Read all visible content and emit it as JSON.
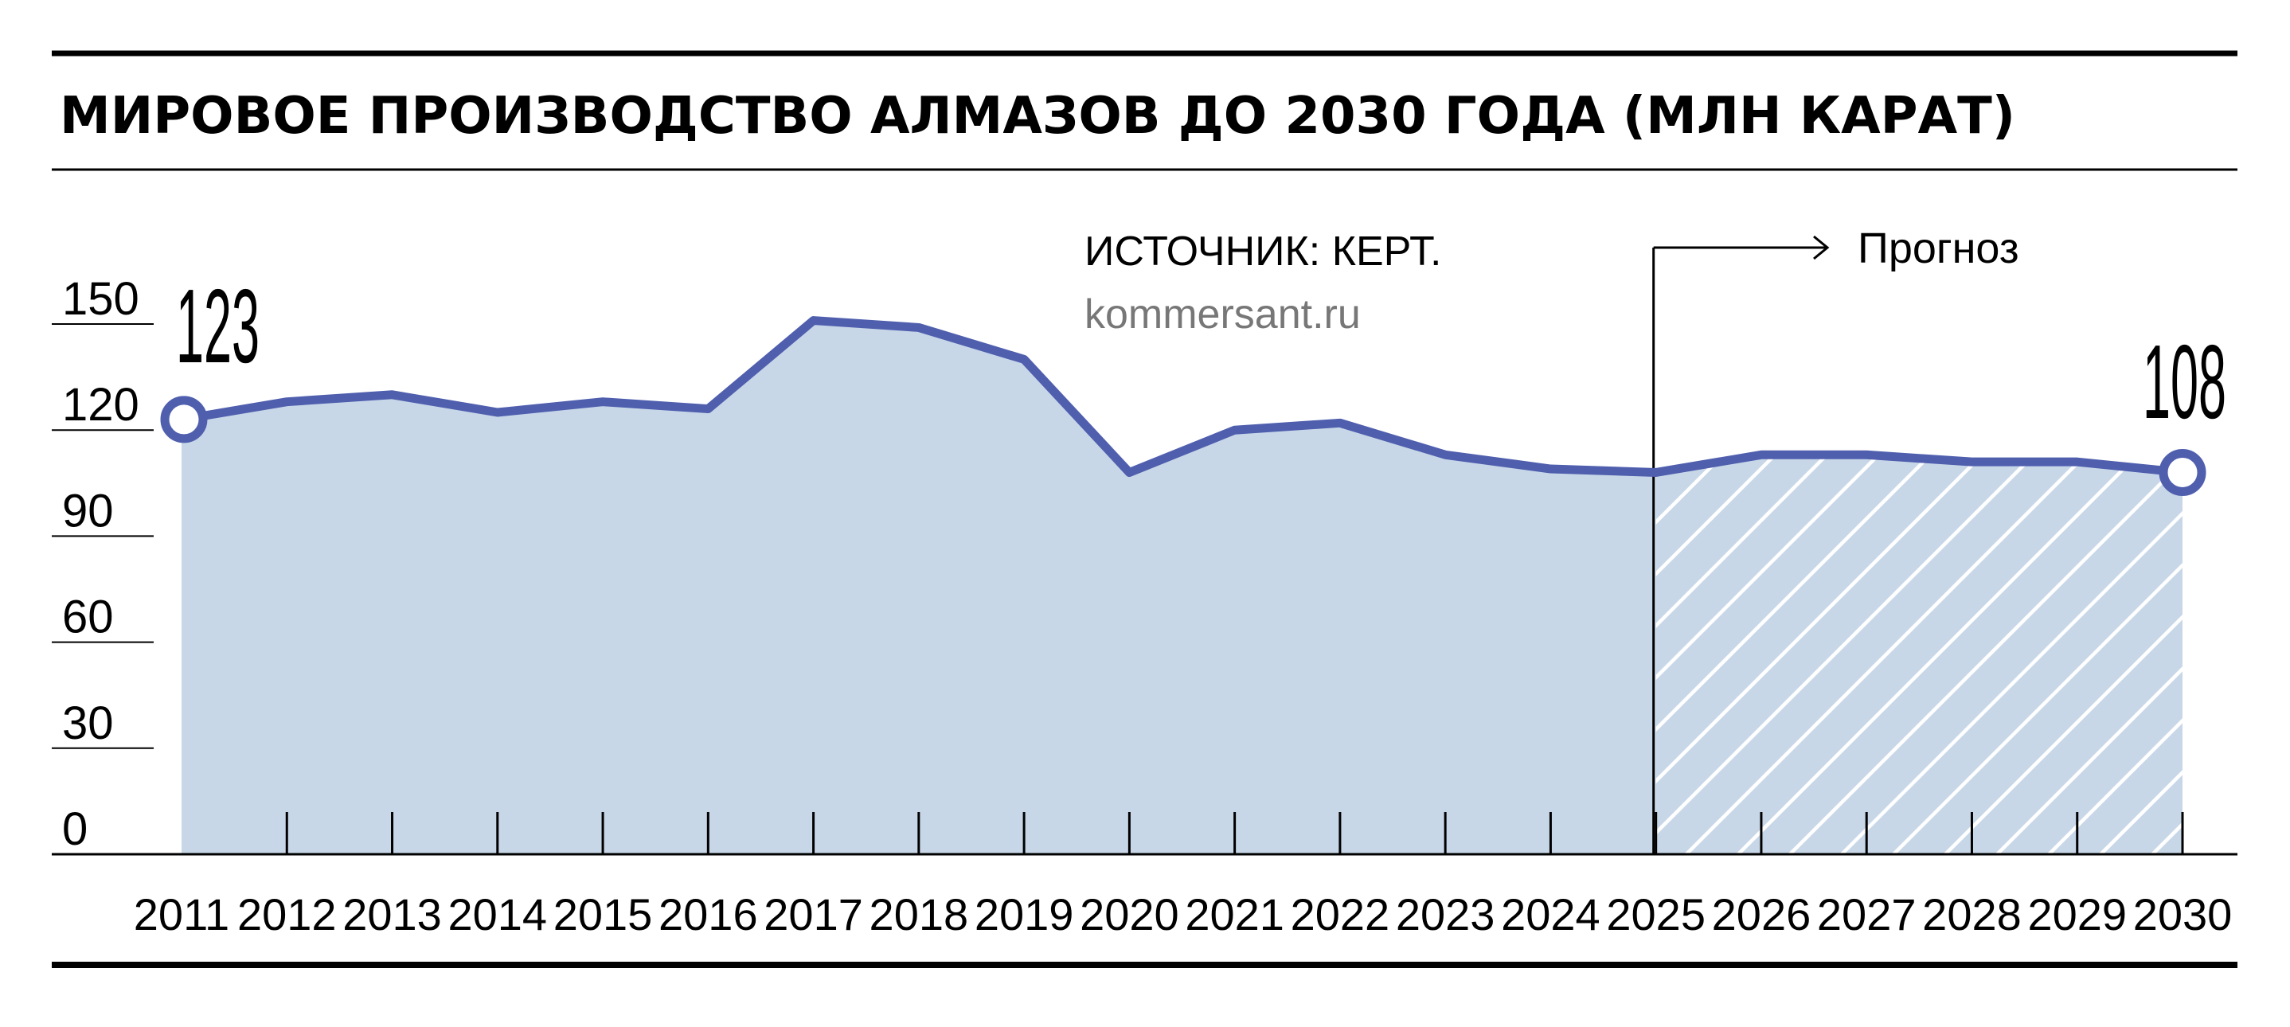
{
  "chart_data": {
    "type": "area",
    "title": "МИРОВОЕ ПРОИЗВОДСТВО АЛМАЗОВ ДО 2030 ГОДА (МЛН КАРАТ)",
    "source": "ИСТОЧНИК: КЕРТ.",
    "site": "kommersant.ru",
    "forecast_label": "Прогноз",
    "forecast_from": "2025",
    "xlabel": "",
    "ylabel": "",
    "ylim": [
      0,
      150
    ],
    "yticks": [
      0,
      30,
      60,
      90,
      120,
      150
    ],
    "grid": false,
    "categories": [
      "2011",
      "2012",
      "2013",
      "2014",
      "2015",
      "2016",
      "2017",
      "2018",
      "2019",
      "2020",
      "2021",
      "2022",
      "2023",
      "2024",
      "2025",
      "2026",
      "2027",
      "2028",
      "2029",
      "2030"
    ],
    "values": [
      123,
      128,
      130,
      125,
      128,
      126,
      151,
      149,
      140,
      108,
      120,
      122,
      113,
      109,
      108,
      113,
      113,
      111,
      111,
      108
    ],
    "annotations": [
      {
        "category": "2011",
        "text": "123"
      },
      {
        "category": "2030",
        "text": "108"
      }
    ],
    "colors": {
      "line": "#4f5fae",
      "fill": "#c8d7e8",
      "hatch": "#ffffff",
      "text": "#000000",
      "site": "#777777"
    }
  }
}
